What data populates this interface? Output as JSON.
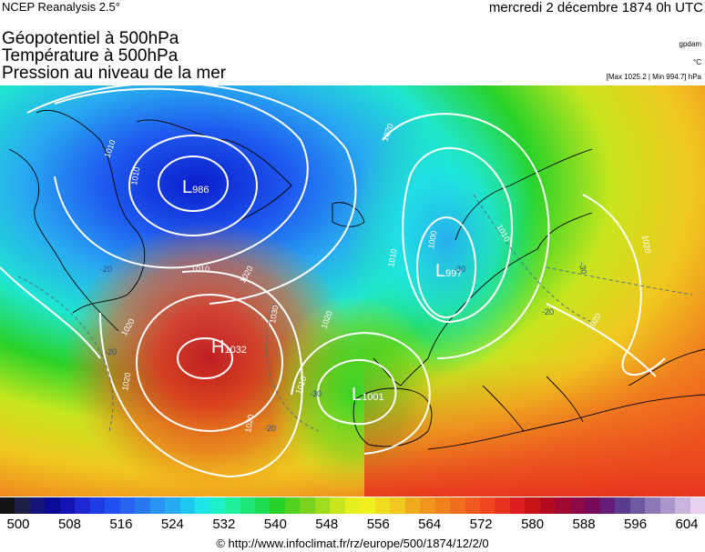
{
  "header": {
    "source": "NCEP Reanalysis 2.5°",
    "date": "mercredi 2 décembre 1874 0h UTC",
    "title_lines": [
      "Géopotentiel à 500hPa",
      "Température à 500hPa",
      "Pression au niveau de la mer"
    ],
    "unit_geopotential": "gpdam",
    "unit_temperature": "°C",
    "pressure_range": "[Max 1025.2 | Min 994.7] hPa"
  },
  "map": {
    "pressure_centers": [
      {
        "type": "L",
        "value": "986"
      },
      {
        "type": "H",
        "value": "1032"
      },
      {
        "type": "L",
        "value": "997"
      },
      {
        "type": "L",
        "value": "1001"
      }
    ],
    "isobar_labels": [
      "1010",
      "1010",
      "1010",
      "1020",
      "1020",
      "1020",
      "1020",
      "1030",
      "1000",
      "1010",
      "1020",
      "1020",
      "1010",
      "1010",
      "1020",
      "1020"
    ],
    "isotherm_labels": [
      "-20",
      "-20",
      "-30",
      "-20",
      "-30",
      "-20",
      "-30"
    ]
  },
  "legend": {
    "ticks": [
      "500",
      "508",
      "516",
      "524",
      "532",
      "540",
      "548",
      "556",
      "564",
      "572",
      "580",
      "588",
      "596",
      "604"
    ],
    "colors": [
      "#141414",
      "#1e1e46",
      "#141478",
      "#0a0a96",
      "#1414b4",
      "#1e28d2",
      "#1e3ce6",
      "#1e50f0",
      "#2864f0",
      "#2878f0",
      "#2896f0",
      "#28aaf0",
      "#1ec8f0",
      "#1ee6e6",
      "#1ef0c8",
      "#1ef0a0",
      "#1ee678",
      "#1edc50",
      "#28d228",
      "#50d21e",
      "#78d21e",
      "#a0dc1e",
      "#c8e61e",
      "#e6f01e",
      "#f0f01e",
      "#f0dc1e",
      "#f0c81e",
      "#f0aa1e",
      "#f0961e",
      "#f0821e",
      "#f06e1e",
      "#f05a1e",
      "#f0461e",
      "#e6321e",
      "#dc1e1e",
      "#c81414",
      "#b40a1e",
      "#a00a32",
      "#8c0a46",
      "#780a5a",
      "#641e78",
      "#5a3c8c",
      "#6e5aa0",
      "#8c78b4",
      "#aa96c8",
      "#c8b4dc",
      "#e6d2f0"
    ]
  },
  "credit": "© http://www.infoclimat.fr/rz/europe/500/1874/12/2/0"
}
